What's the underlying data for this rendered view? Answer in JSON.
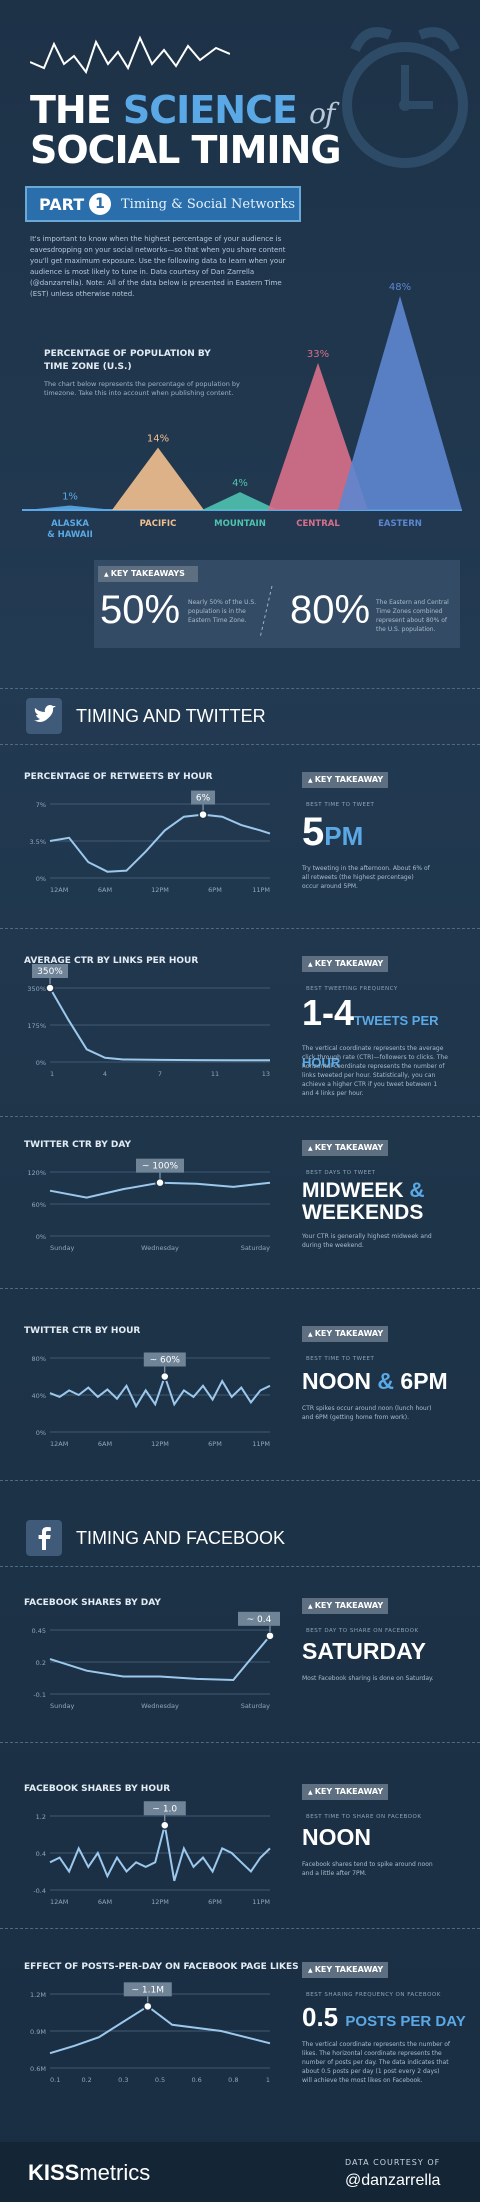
{
  "header": {
    "title_line1_a": "THE",
    "title_line1_b": "SCIENCE",
    "title_line1_c": "of",
    "title_line2": "SOCIAL TIMING",
    "part_label": "PART",
    "part_number": "1",
    "part_title": "Timing & Social Networks",
    "intro": "It's important to know when the highest percentage of your audience is eavesdropping on your social networks—so that when you share content you'll get maximum exposure. Use the following data to learn when your audience is most likely to tune in. Data courtesy of Dan Zarrella (@danzarrella). Note: All of the data below is presented in Eastern Time (EST) unless otherwise noted."
  },
  "population": {
    "title": "PERCENTAGE OF POPULATION BY TIME ZONE (U.S.)",
    "desc": "The chart below represents the percentage of population by timezone. Take this into account when publishing content.",
    "colors": {
      "alaska": "#5aa9e6",
      "pacific": "#f2c08f",
      "mountain": "#4fc3b0",
      "central": "#d9708a",
      "eastern": "#5e86d0"
    }
  },
  "takeaways_top": {
    "head": "KEY TAKEAWAYS",
    "stat1": "50%",
    "desc1": "Nearly 50% of the U.S. population is in the Eastern Time Zone.",
    "stat2": "80%",
    "desc2": "The Eastern and Central Time Zones combined represent about 80% of the U.S. population."
  },
  "twitter": {
    "title": "TIMING AND TWITTER",
    "icon": "twitter-bird-icon",
    "retweets": {
      "kt_head": "KEY TAKEAWAY",
      "kt_sub": "BEST TIME TO TWEET",
      "big_num": "5",
      "big_acc": "PM",
      "desc": "Try tweeting in the afternoon. About 6% of all retweets (the highest percentage) occur around 5PM."
    },
    "ctr_links": {
      "kt_head": "KEY TAKEAWAY",
      "kt_sub": "BEST TWEETING FREQUENCY",
      "big_num": "1-4",
      "big_acc": "TWEETS PER HOUR",
      "desc": "The vertical coordinate represents the average click through rate (CTR)—followers to clicks. The horizontal coordinate represents the number of links tweeted per hour. Statistically, you can achieve a higher CTR if you tweet between 1 and 4 links per hour."
    },
    "ctr_day": {
      "kt_head": "KEY TAKEAWAY",
      "kt_sub": "BEST DAYS TO TWEET",
      "big_a": "MIDWEEK",
      "big_b": "&",
      "big_c": "WEEKENDS",
      "desc": "Your CTR is generally highest midweek and during the weekend."
    },
    "ctr_hour": {
      "kt_head": "KEY TAKEAWAY",
      "kt_sub": "BEST TIME TO TWEET",
      "big_a": "NOON",
      "big_b": "&",
      "big_c": "6PM",
      "desc": "CTR spikes occur around noon (lunch hour) and 6PM (getting home from work)."
    }
  },
  "facebook": {
    "title": "TIMING AND FACEBOOK",
    "icon": "facebook-f-icon",
    "shares_day": {
      "kt_head": "KEY TAKEAWAY",
      "kt_sub": "BEST DAY TO SHARE ON FACEBOOK",
      "big": "SATURDAY",
      "desc": "Most Facebook sharing is done on Saturday."
    },
    "shares_hour": {
      "kt_head": "KEY TAKEAWAY",
      "kt_sub": "BEST TIME TO SHARE ON FACEBOOK",
      "big": "NOON",
      "desc": "Facebook shares tend to spike around noon and a little after 7PM."
    },
    "posts_per_day": {
      "kt_head": "KEY TAKEAWAY",
      "kt_sub": "BEST SHARING FREQUENCY ON FACEBOOK",
      "big_num": "0.5",
      "big_acc": "POSTS PER DAY",
      "desc": "The vertical coordinate represents the number of likes. The horizontal coordinate represents the number of posts per day. The data indicates that about 0.5 posts per day (1 post every 2 days) will achieve the most likes on Facebook."
    }
  },
  "footer": {
    "logo_a": "KISS",
    "logo_b": "metrics",
    "courtesy": "DATA COURTESY OF",
    "handle": "@danzarrella"
  },
  "chart_data": [
    {
      "type": "area",
      "title": "PERCENTAGE OF POPULATION BY TIME ZONE (U.S.)",
      "categories": [
        "ALASKA & HAWAII",
        "PACIFIC",
        "MOUNTAIN",
        "CENTRAL",
        "EASTERN"
      ],
      "values": [
        1,
        14,
        4,
        33,
        48
      ],
      "value_labels": [
        "1%",
        "14%",
        "4%",
        "33%",
        "48%"
      ]
    },
    {
      "type": "line",
      "title": "PERCENTAGE OF RETWEETS BY HOUR",
      "x_ticks": [
        "12AM",
        "6AM",
        "12PM",
        "6PM",
        "11PM"
      ],
      "y_ticks": [
        "7%",
        "3.5%",
        "0%"
      ],
      "ylim": [
        0,
        7
      ],
      "x": [
        0,
        2,
        4,
        6,
        8,
        10,
        12,
        14,
        16,
        18,
        20,
        22,
        23
      ],
      "values": [
        3.5,
        3.8,
        1.5,
        0.6,
        0.7,
        2.5,
        4.5,
        5.8,
        6.0,
        5.8,
        5.0,
        4.5,
        4.2
      ],
      "annotation": {
        "label": "6%",
        "index": 8
      }
    },
    {
      "type": "line",
      "title": "AVERAGE CTR BY LINKS PER HOUR",
      "x_ticks": [
        "1",
        "4",
        "7",
        "11",
        "13"
      ],
      "y_ticks": [
        "350%",
        "175%",
        "0%"
      ],
      "ylim": [
        0,
        350
      ],
      "x": [
        1,
        2,
        3,
        4,
        5,
        7,
        9,
        11,
        13
      ],
      "values": [
        350,
        200,
        60,
        20,
        12,
        10,
        9,
        8,
        8
      ],
      "annotation": {
        "label": "350%",
        "index": 0
      }
    },
    {
      "type": "line",
      "title": "TWITTER CTR BY DAY",
      "x_ticks": [
        "Sunday",
        "Wednesday",
        "Saturday"
      ],
      "y_ticks": [
        "120%",
        "60%",
        "0%"
      ],
      "ylim": [
        0,
        120
      ],
      "x": [
        0,
        1,
        2,
        3,
        4,
        5,
        6
      ],
      "values": [
        85,
        72,
        88,
        100,
        98,
        92,
        100
      ],
      "annotation": {
        "label": "~ 100%",
        "index": 3
      }
    },
    {
      "type": "line",
      "title": "TWITTER CTR BY HOUR",
      "x_ticks": [
        "12AM",
        "6AM",
        "12PM",
        "6PM",
        "11PM"
      ],
      "y_ticks": [
        "80%",
        "40%",
        "0%"
      ],
      "ylim": [
        0,
        80
      ],
      "x": [
        0,
        1,
        2,
        3,
        4,
        5,
        6,
        7,
        8,
        9,
        10,
        11,
        12,
        13,
        14,
        15,
        16,
        17,
        18,
        19,
        20,
        21,
        22,
        23
      ],
      "values": [
        42,
        38,
        45,
        40,
        48,
        38,
        46,
        36,
        50,
        28,
        45,
        30,
        60,
        30,
        45,
        38,
        50,
        35,
        55,
        38,
        48,
        32,
        45,
        50
      ],
      "annotation": {
        "label": "~ 60%",
        "index": 12
      }
    },
    {
      "type": "line",
      "title": "FACEBOOK SHARES BY DAY",
      "x_ticks": [
        "Sunday",
        "Wednesday",
        "Saturday"
      ],
      "y_ticks": [
        "0.45",
        "0.2",
        "-0.1"
      ],
      "ylim": [
        -0.1,
        0.45
      ],
      "x": [
        0,
        1,
        2,
        3,
        4,
        5,
        6
      ],
      "values": [
        0.2,
        0.1,
        0.05,
        0.05,
        0.03,
        0.02,
        0.4
      ],
      "annotation": {
        "label": "~ 0.4",
        "index": 6
      }
    },
    {
      "type": "line",
      "title": "FACEBOOK SHARES BY HOUR",
      "x_ticks": [
        "12AM",
        "6AM",
        "12PM",
        "6PM",
        "11PM"
      ],
      "y_ticks": [
        "1.2",
        "0.4",
        "-0.4"
      ],
      "ylim": [
        -0.4,
        1.2
      ],
      "x": [
        0,
        1,
        2,
        3,
        4,
        5,
        6,
        7,
        8,
        9,
        10,
        11,
        12,
        13,
        14,
        15,
        16,
        17,
        18,
        19,
        20,
        21,
        22,
        23
      ],
      "values": [
        0.2,
        0.3,
        0.0,
        0.5,
        0.1,
        0.4,
        -0.1,
        0.3,
        0.0,
        0.2,
        0.1,
        0.2,
        1.0,
        -0.2,
        0.5,
        0.1,
        0.3,
        0.0,
        0.5,
        0.4,
        0.2,
        0.0,
        0.3,
        0.5
      ],
      "annotation": {
        "label": "~ 1.0",
        "index": 12
      }
    },
    {
      "type": "line",
      "title": "EFFECT OF POSTS-PER-DAY ON FACEBOOK PAGE LIKES",
      "x_ticks": [
        "0.1",
        "0.2",
        "0.3",
        "0.5",
        "0.6",
        "0.8",
        "1"
      ],
      "y_ticks": [
        "1.2M",
        "0.9M",
        "0.6M"
      ],
      "ylim": [
        0.6,
        1.2
      ],
      "x": [
        0.1,
        0.2,
        0.3,
        0.5,
        0.6,
        0.8,
        1
      ],
      "values": [
        0.72,
        0.78,
        0.85,
        1.1,
        0.95,
        0.9,
        0.8
      ],
      "annotation": {
        "label": "~ 1.1M",
        "index": 3
      }
    }
  ]
}
